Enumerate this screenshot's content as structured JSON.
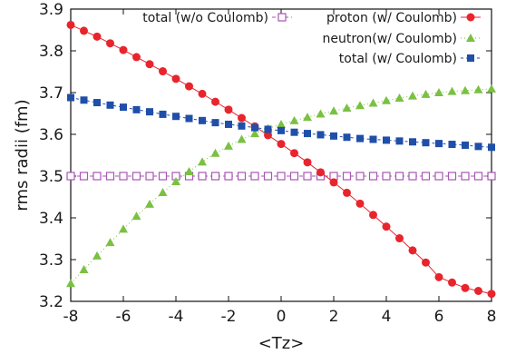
{
  "chart_data": {
    "type": "line",
    "xlabel": "<Tz>",
    "ylabel": "rms radii (fm)",
    "xlim": [
      -8,
      8
    ],
    "ylim": [
      3.2,
      3.9
    ],
    "xticks": [
      "-8",
      "-6",
      "-4",
      "-2",
      "0",
      "2",
      "4",
      "6",
      "8"
    ],
    "yticks": [
      "3.2",
      "3.3",
      "3.4",
      "3.5",
      "3.6",
      "3.7",
      "3.8",
      "3.9"
    ],
    "legend_placement": "top-right",
    "x": [
      -8,
      -7.5,
      -7,
      -6.5,
      -6,
      -5.5,
      -5,
      -4.5,
      -4,
      -3.5,
      -3,
      -2.5,
      -2,
      -1.5,
      -1,
      -0.5,
      0,
      0.5,
      1,
      1.5,
      2,
      2.5,
      3,
      3.5,
      4,
      4.5,
      5,
      5.5,
      6,
      6.5,
      7,
      7.5,
      8
    ],
    "series": [
      {
        "name": "total (w/o Coulomb)",
        "marker": "open-square",
        "color": "#a855b5",
        "values": [
          3.5,
          3.5,
          3.5,
          3.5,
          3.5,
          3.5,
          3.5,
          3.5,
          3.5,
          3.5,
          3.5,
          3.5,
          3.5,
          3.5,
          3.5,
          3.5,
          3.5,
          3.5,
          3.5,
          3.5,
          3.5,
          3.5,
          3.5,
          3.5,
          3.5,
          3.5,
          3.5,
          3.5,
          3.5,
          3.5,
          3.5,
          3.5,
          3.5
        ]
      },
      {
        "name": "proton (w/ Coulomb)",
        "marker": "filled-circle",
        "color": "#e8242d",
        "values": [
          3.862,
          3.848,
          3.834,
          3.818,
          3.802,
          3.785,
          3.768,
          3.751,
          3.733,
          3.715,
          3.697,
          3.678,
          3.659,
          3.639,
          3.619,
          3.598,
          3.577,
          3.555,
          3.533,
          3.509,
          3.485,
          3.46,
          3.434,
          3.407,
          3.379,
          3.351,
          3.322,
          3.293,
          3.258,
          3.245,
          3.232,
          3.225,
          3.218
        ]
      },
      {
        "name": "neutron(w/ Coulomb)",
        "marker": "filled-triangle",
        "color": "#7ac143",
        "values": [
          3.243,
          3.276,
          3.309,
          3.341,
          3.373,
          3.404,
          3.433,
          3.461,
          3.487,
          3.511,
          3.534,
          3.555,
          3.572,
          3.588,
          3.602,
          3.614,
          3.624,
          3.633,
          3.641,
          3.649,
          3.656,
          3.663,
          3.669,
          3.675,
          3.681,
          3.687,
          3.692,
          3.696,
          3.7,
          3.703,
          3.705,
          3.707,
          3.709
        ]
      },
      {
        "name": "total  (w/ Coulomb)",
        "marker": "filled-square",
        "color": "#1f4fa8",
        "values": [
          3.688,
          3.682,
          3.676,
          3.67,
          3.665,
          3.659,
          3.654,
          3.648,
          3.643,
          3.638,
          3.633,
          3.628,
          3.624,
          3.62,
          3.616,
          3.612,
          3.609,
          3.605,
          3.602,
          3.599,
          3.596,
          3.593,
          3.59,
          3.588,
          3.586,
          3.584,
          3.582,
          3.58,
          3.578,
          3.576,
          3.574,
          3.571,
          3.569
        ]
      }
    ]
  }
}
